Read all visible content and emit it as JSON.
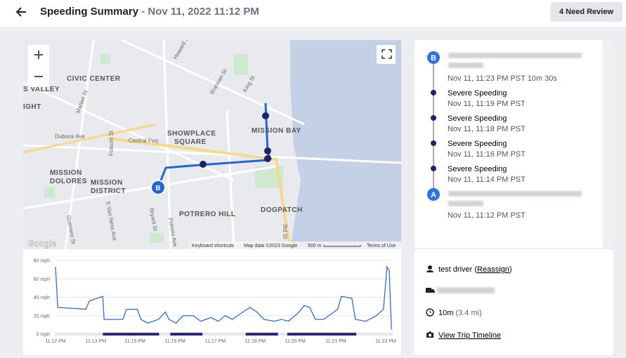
{
  "header": {
    "title": "Speeding Summary",
    "subtitle": "- Nov 11, 2022 11:12 PM",
    "button": "4 Need Review"
  },
  "map": {
    "labels": [
      "CIVIC CENTER",
      "SHOWPLACE",
      "SQUARE",
      "MISSION BAY",
      "MISSION",
      "DOLORES",
      "MISSION",
      "DISTRICT",
      "POTRERO HILL",
      "DOGPATCH",
      "S VALLEY",
      "IGHT"
    ],
    "streets": [
      "Central Fwy",
      "Duboce Ave",
      "Market St",
      "Folsom St",
      "Howard St",
      "Brannan St",
      "King St",
      "Bryant St",
      "Potrero Ave",
      "S Van Ness Ave",
      "Guerrero St",
      "3rd St"
    ],
    "footer": [
      "Keyboard shortcuts",
      "Map data ©2023 Google",
      "500 m",
      "Terms of Use"
    ],
    "logo": "Google"
  },
  "timeline": {
    "end": {
      "letter": "B",
      "time": "Nov 11, 11:23 PM PST",
      "duration": "10m 30s"
    },
    "events": [
      {
        "label": "Severe Speeding",
        "time": "Nov 11, 11:19 PM PST"
      },
      {
        "label": "Severe Speeding",
        "time": "Nov 11, 11:18 PM PST"
      },
      {
        "label": "Severe Speeding",
        "time": "Nov 11, 11:16 PM PST"
      },
      {
        "label": "Severe Speeding",
        "time": "Nov 11, 11:14 PM PST"
      }
    ],
    "start": {
      "letter": "A",
      "time": "Nov 11, 11:12 PM PST"
    }
  },
  "info": {
    "driver": "test driver",
    "open": "(",
    "reassign": "Reassign",
    "close": ")",
    "duration": "10m",
    "distance": "(3.4 mi)",
    "link": "View Trip Timeline"
  },
  "chart_data": {
    "type": "line",
    "x": [
      0,
      0.07,
      0.95,
      1.06,
      1.48,
      1.52,
      2.11,
      2.22,
      2.56,
      2.67,
      2.89,
      3.22,
      3.44,
      3.55,
      3.77,
      3.99,
      4.32,
      4.54,
      4.87,
      5.09,
      5.31,
      5.53,
      5.86,
      6.08,
      6.3,
      6.52,
      6.85,
      7.07,
      7.29,
      7.62,
      7.78,
      7.95,
      8.13,
      8.39,
      8.83,
      8.94,
      9.27,
      9.38,
      9.71,
      10.04,
      10.26,
      10.37,
      10.44,
      10.51
    ],
    "series": [
      {
        "name": "Speed",
        "color": "#2f6fdc",
        "values": [
          73,
          29,
          27,
          36,
          41,
          16,
          16,
          27,
          27,
          16,
          12,
          16,
          24,
          16,
          12,
          20,
          20,
          14,
          18,
          14,
          20,
          16,
          24,
          29,
          24,
          16,
          14,
          16,
          14,
          24,
          31,
          29,
          16,
          16,
          27,
          41,
          39,
          16,
          14,
          20,
          27,
          73,
          69,
          5
        ]
      }
    ],
    "speeding_ranges": [
      [
        1.48,
        3.24
      ],
      [
        3.59,
        4.6
      ],
      [
        5.95,
        6.96
      ],
      [
        7.25,
        9.41
      ]
    ],
    "speeding_color": "#2b2a7a",
    "xlim": [
      0,
      10.55
    ],
    "ylim": [
      0,
      80
    ],
    "xticks": [
      {
        "value": 0,
        "label": "11:12 PM"
      },
      {
        "value": 1.26,
        "label": "11:13 PM"
      },
      {
        "value": 2.49,
        "label": "11:15 PM"
      },
      {
        "value": 3.74,
        "label": "11:16 PM"
      },
      {
        "value": 5.0,
        "label": "11:17 PM"
      },
      {
        "value": 6.25,
        "label": "11:18 PM"
      },
      {
        "value": 7.5,
        "label": "11:20 PM"
      },
      {
        "value": 8.77,
        "label": "11:21 PM"
      },
      {
        "value": 10.33,
        "label": "11:23 PM"
      }
    ],
    "yticks": [
      {
        "value": 0,
        "label": "0 mph"
      },
      {
        "value": 20,
        "label": "20 mph"
      },
      {
        "value": 40,
        "label": "40 mph"
      },
      {
        "value": 60,
        "label": "60 mph"
      },
      {
        "value": 80,
        "label": "80 mph"
      }
    ],
    "grid": true
  }
}
